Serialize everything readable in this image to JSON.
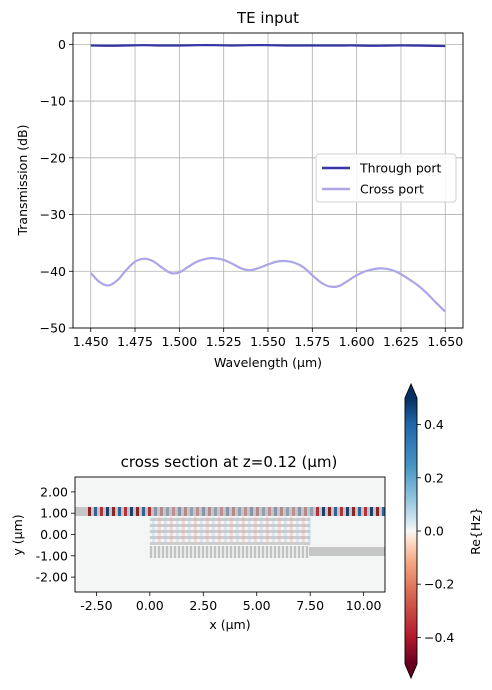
{
  "chart_data": [
    {
      "type": "line",
      "title": "TE input",
      "xlabel": "Wavelength (µm)",
      "ylabel": "Transmission (dB)",
      "xlim": [
        1.44,
        1.66
      ],
      "ylim": [
        -50,
        2
      ],
      "xticks": [
        1.45,
        1.475,
        1.5,
        1.525,
        1.55,
        1.575,
        1.6,
        1.625,
        1.65
      ],
      "xtick_labels": [
        "1.450",
        "1.475",
        "1.500",
        "1.525",
        "1.550",
        "1.575",
        "1.600",
        "1.625",
        "1.650"
      ],
      "yticks": [
        0,
        -10,
        -20,
        -30,
        -40,
        -50
      ],
      "ytick_labels": [
        "0",
        "−10",
        "−20",
        "−30",
        "−40",
        "−50"
      ],
      "grid": true,
      "legend_position": "center-right",
      "series": [
        {
          "name": "Through port",
          "color": "#3535a8",
          "x": [
            1.45,
            1.46,
            1.47,
            1.48,
            1.49,
            1.5,
            1.51,
            1.52,
            1.53,
            1.54,
            1.55,
            1.56,
            1.57,
            1.58,
            1.59,
            1.6,
            1.61,
            1.62,
            1.63,
            1.64,
            1.65
          ],
          "y": [
            -0.2,
            -0.25,
            -0.2,
            -0.15,
            -0.2,
            -0.2,
            -0.15,
            -0.15,
            -0.2,
            -0.15,
            -0.15,
            -0.2,
            -0.2,
            -0.2,
            -0.2,
            -0.2,
            -0.25,
            -0.2,
            -0.2,
            -0.25,
            -0.3
          ]
        },
        {
          "name": "Cross port",
          "color": "#aaa6e8",
          "x": [
            1.45,
            1.455,
            1.46,
            1.465,
            1.47,
            1.475,
            1.48,
            1.485,
            1.49,
            1.495,
            1.5,
            1.505,
            1.51,
            1.515,
            1.52,
            1.525,
            1.53,
            1.535,
            1.54,
            1.545,
            1.55,
            1.555,
            1.56,
            1.565,
            1.57,
            1.575,
            1.58,
            1.585,
            1.59,
            1.595,
            1.6,
            1.605,
            1.61,
            1.615,
            1.62,
            1.625,
            1.63,
            1.635,
            1.64,
            1.645,
            1.65
          ],
          "y": [
            -40.3,
            -41.9,
            -42.5,
            -41.6,
            -39.8,
            -38.3,
            -37.8,
            -38.2,
            -39.3,
            -40.3,
            -40.2,
            -39.2,
            -38.3,
            -37.8,
            -37.7,
            -38.0,
            -38.7,
            -39.5,
            -39.8,
            -39.4,
            -38.8,
            -38.3,
            -38.2,
            -38.5,
            -39.3,
            -40.7,
            -42.0,
            -42.7,
            -42.6,
            -41.7,
            -40.7,
            -40.0,
            -39.6,
            -39.5,
            -39.8,
            -40.5,
            -41.5,
            -42.6,
            -44.0,
            -45.6,
            -47.1
          ]
        }
      ]
    },
    {
      "type": "heatmap",
      "title": "cross section at z=0.12 (µm)",
      "xlabel": "x (µm)",
      "ylabel": "y (µm)",
      "xlim": [
        -3.5,
        11
      ],
      "ylim": [
        -2.7,
        2.7
      ],
      "xticks": [
        -2.5,
        0,
        2.5,
        5,
        7.5,
        10
      ],
      "xtick_labels": [
        "-2.50",
        "0.00",
        "2.50",
        "5.00",
        "7.50",
        "10.00"
      ],
      "yticks": [
        2,
        1,
        0,
        -1,
        -2
      ],
      "ytick_labels": [
        "2.00",
        "1.00",
        "0.00",
        "-1.00",
        "-2.00"
      ],
      "colorbar": {
        "label": "Re{Hz}",
        "range": [
          -0.5,
          0.5
        ],
        "ticks": [
          0.4,
          0.2,
          0.0,
          -0.2,
          -0.4
        ],
        "tick_labels": [
          "0.4",
          "0.2",
          "0.0",
          "−0.2",
          "−0.4"
        ],
        "colormap": "RdBu"
      }
    }
  ]
}
